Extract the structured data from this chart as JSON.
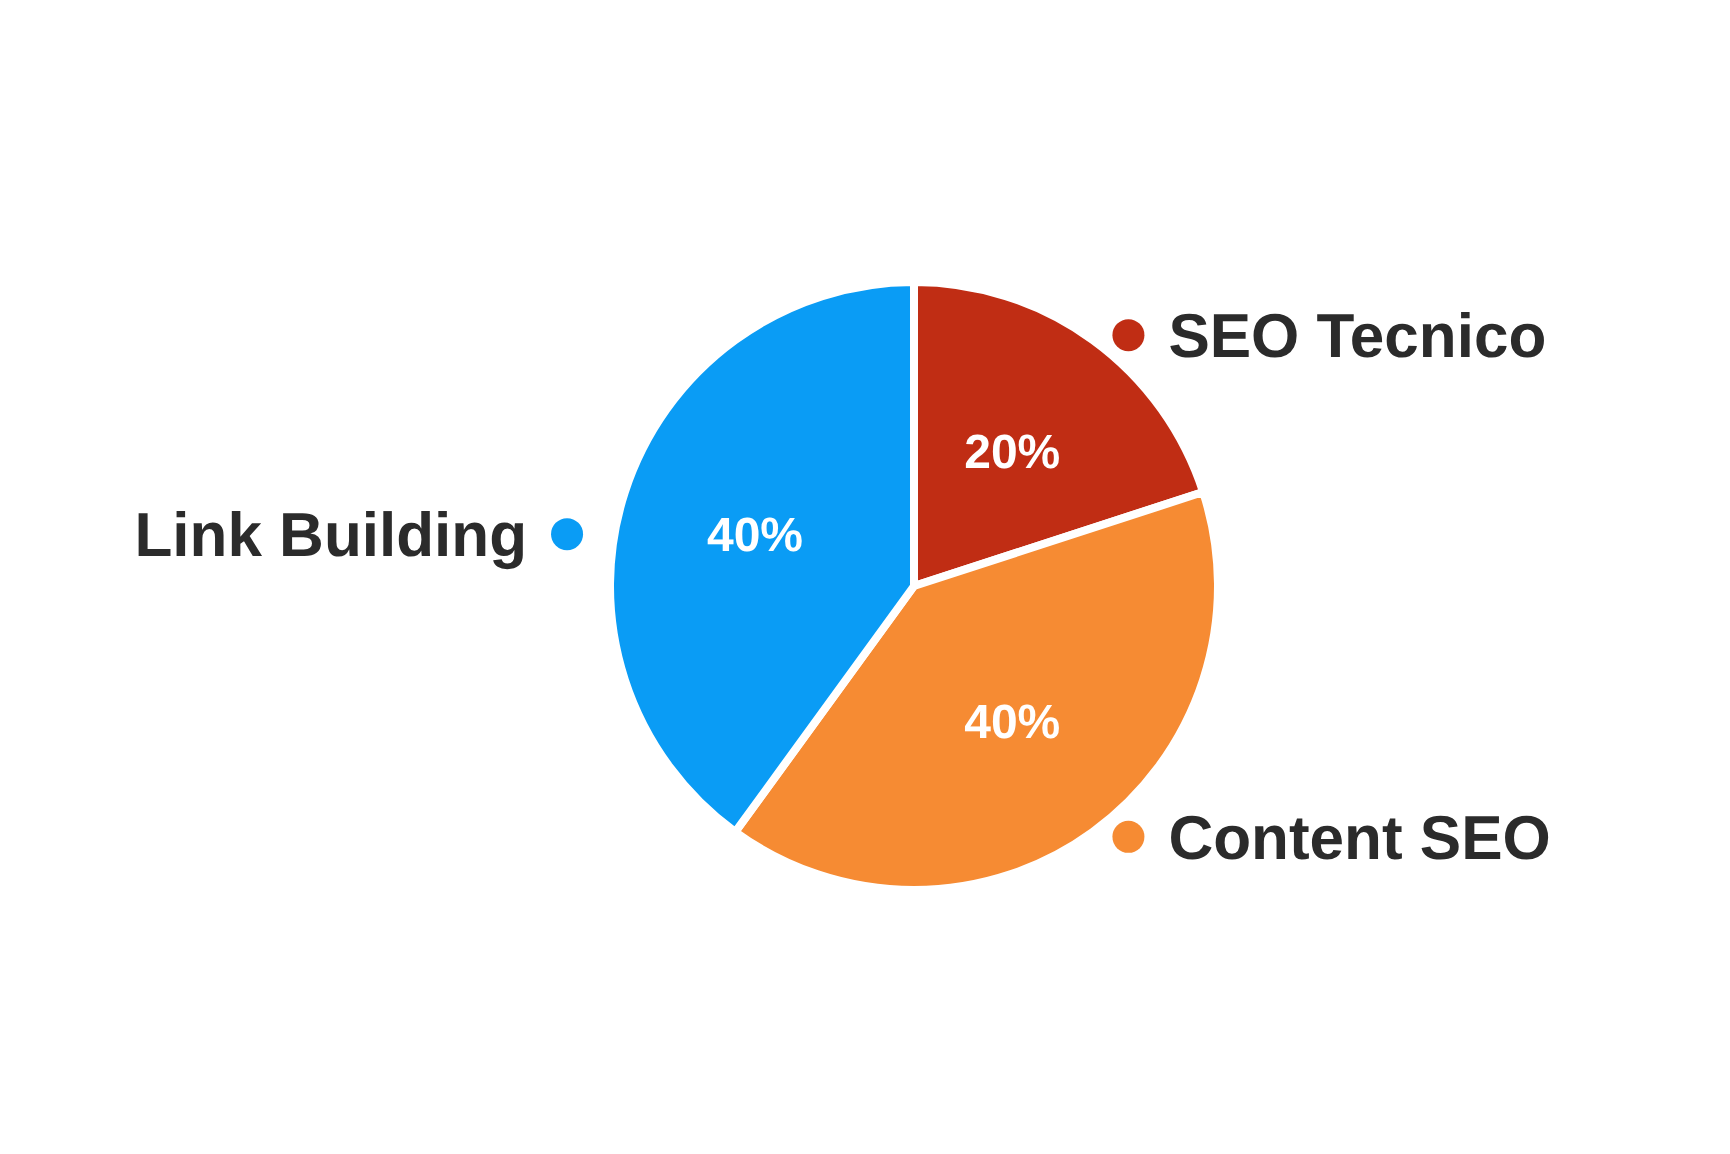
{
  "chart_data": {
    "type": "pie",
    "categories": [
      "SEO Tecnico",
      "Content SEO",
      "Link Building"
    ],
    "values": [
      20,
      40,
      40
    ],
    "colors": [
      "#c02d14",
      "#f68b33",
      "#0a9cf5"
    ],
    "value_labels": [
      "20%",
      "40%",
      "40%"
    ],
    "legend": "right"
  }
}
